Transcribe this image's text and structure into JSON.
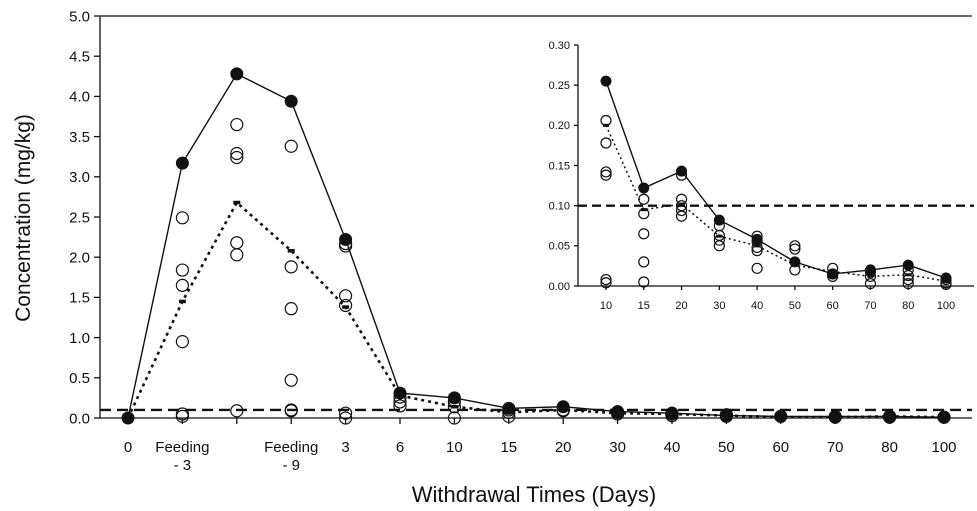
{
  "chart_data": [
    {
      "type": "scatter",
      "title": "",
      "xlabel": "Withdrawal Times (Days)",
      "ylabel": "Concentration (mg/kg)",
      "ylim": [
        0,
        5
      ],
      "yticks": [
        "0.0",
        "0.5",
        "1.0",
        "1.5",
        "2.0",
        "2.5",
        "3.0",
        "3.5",
        "4.0",
        "4.5",
        "5.0"
      ],
      "categories": [
        "0",
        "Feeding\n- 3",
        "",
        "Feeding\n- 9",
        "3",
        "6",
        "10",
        "15",
        "20",
        "30",
        "40",
        "50",
        "60",
        "70",
        "80",
        "100"
      ],
      "series": [
        {
          "name": "",
          "style": "max-solid-line-filled-marker",
          "values": [
            0,
            3.17,
            4.28,
            3.94,
            2.22,
            0.31,
            0.25,
            0.12,
            0.14,
            0.08,
            0.06,
            0.03,
            0.02,
            0.02,
            0.02,
            0.01
          ]
        },
        {
          "name": "",
          "style": "mean-dotted-line-dash-marker",
          "values": [
            0,
            1.45,
            2.68,
            2.08,
            1.38,
            0.28,
            0.14,
            0.07,
            0.1,
            0.06,
            0.05,
            0.03,
            0.01,
            0.01,
            0.02,
            0.01
          ]
        },
        {
          "name": "",
          "style": "individual-open-markers",
          "points": [
            [
              1,
              2.49
            ],
            [
              1,
              1.84
            ],
            [
              1,
              1.65
            ],
            [
              1,
              0.95
            ],
            [
              1,
              0.05
            ],
            [
              1,
              0.02
            ],
            [
              2,
              3.65
            ],
            [
              2,
              3.29
            ],
            [
              2,
              3.24
            ],
            [
              2,
              2.18
            ],
            [
              2,
              2.03
            ],
            [
              2,
              0.09
            ],
            [
              3,
              3.38
            ],
            [
              3,
              1.88
            ],
            [
              3,
              1.36
            ],
            [
              3,
              0.47
            ],
            [
              3,
              0.1
            ],
            [
              3,
              0.09
            ],
            [
              4,
              2.17
            ],
            [
              4,
              2.14
            ],
            [
              4,
              1.52
            ],
            [
              4,
              1.4
            ],
            [
              4,
              0.06
            ],
            [
              4,
              0.0
            ],
            [
              5,
              0.26
            ],
            [
              5,
              0.2
            ],
            [
              5,
              0.15
            ],
            [
              6,
              0.2
            ],
            [
              6,
              0.14
            ],
            [
              6,
              0.0
            ],
            [
              7,
              0.1
            ],
            [
              7,
              0.07
            ],
            [
              7,
              0.02
            ],
            [
              8,
              0.1
            ],
            [
              8,
              0.09
            ],
            [
              9,
              0.07
            ],
            [
              9,
              0.05
            ],
            [
              10,
              0.05
            ],
            [
              10,
              0.03
            ],
            [
              11,
              0.04
            ],
            [
              11,
              0.02
            ],
            [
              12,
              0.02
            ],
            [
              13,
              0.01
            ],
            [
              14,
              0.02
            ],
            [
              14,
              0.01
            ],
            [
              15,
              0.01
            ]
          ]
        }
      ],
      "reference_line": {
        "value": 0.1,
        "style": "dashed"
      }
    },
    {
      "type": "scatter",
      "title": "",
      "xlabel": "",
      "ylabel": "",
      "ylim": [
        0,
        0.3
      ],
      "yticks": [
        "0.00",
        "0.05",
        "0.10",
        "0.15",
        "0.20",
        "0.25",
        "0.30"
      ],
      "categories": [
        "10",
        "15",
        "20",
        "30",
        "40",
        "50",
        "60",
        "70",
        "80",
        "100"
      ],
      "series": [
        {
          "name": "",
          "style": "max-solid-line-filled-marker",
          "values": [
            0.255,
            0.122,
            0.143,
            0.082,
            0.058,
            0.03,
            0.015,
            0.02,
            0.026,
            0.01
          ]
        },
        {
          "name": "",
          "style": "mean-dotted-line-dash-marker",
          "values": [
            0.2,
            0.095,
            0.102,
            0.062,
            0.05,
            0.026,
            0.018,
            0.012,
            0.014,
            0.006
          ]
        },
        {
          "name": "",
          "style": "individual-open-markers",
          "points": [
            [
              0,
              0.206
            ],
            [
              0,
              0.178
            ],
            [
              0,
              0.142
            ],
            [
              0,
              0.138
            ],
            [
              0,
              0.008
            ],
            [
              0,
              0.004
            ],
            [
              1,
              0.108
            ],
            [
              1,
              0.09
            ],
            [
              1,
              0.065
            ],
            [
              1,
              0.03
            ],
            [
              1,
              0.005
            ],
            [
              2,
              0.138
            ],
            [
              2,
              0.108
            ],
            [
              2,
              0.1
            ],
            [
              2,
              0.094
            ],
            [
              2,
              0.087
            ],
            [
              3,
              0.075
            ],
            [
              3,
              0.063
            ],
            [
              3,
              0.057
            ],
            [
              3,
              0.05
            ],
            [
              4,
              0.062
            ],
            [
              4,
              0.055
            ],
            [
              4,
              0.048
            ],
            [
              4,
              0.044
            ],
            [
              4,
              0.022
            ],
            [
              5,
              0.05
            ],
            [
              5,
              0.046
            ],
            [
              5,
              0.02
            ],
            [
              6,
              0.022
            ],
            [
              6,
              0.015
            ],
            [
              6,
              0.012
            ],
            [
              7,
              0.018
            ],
            [
              7,
              0.012
            ],
            [
              7,
              0.003
            ],
            [
              8,
              0.02
            ],
            [
              8,
              0.013
            ],
            [
              8,
              0.008
            ],
            [
              8,
              0.003
            ],
            [
              9,
              0.008
            ],
            [
              9,
              0.004
            ],
            [
              9,
              0.002
            ]
          ]
        }
      ],
      "reference_line": {
        "value": 0.1,
        "style": "dashed"
      }
    }
  ]
}
